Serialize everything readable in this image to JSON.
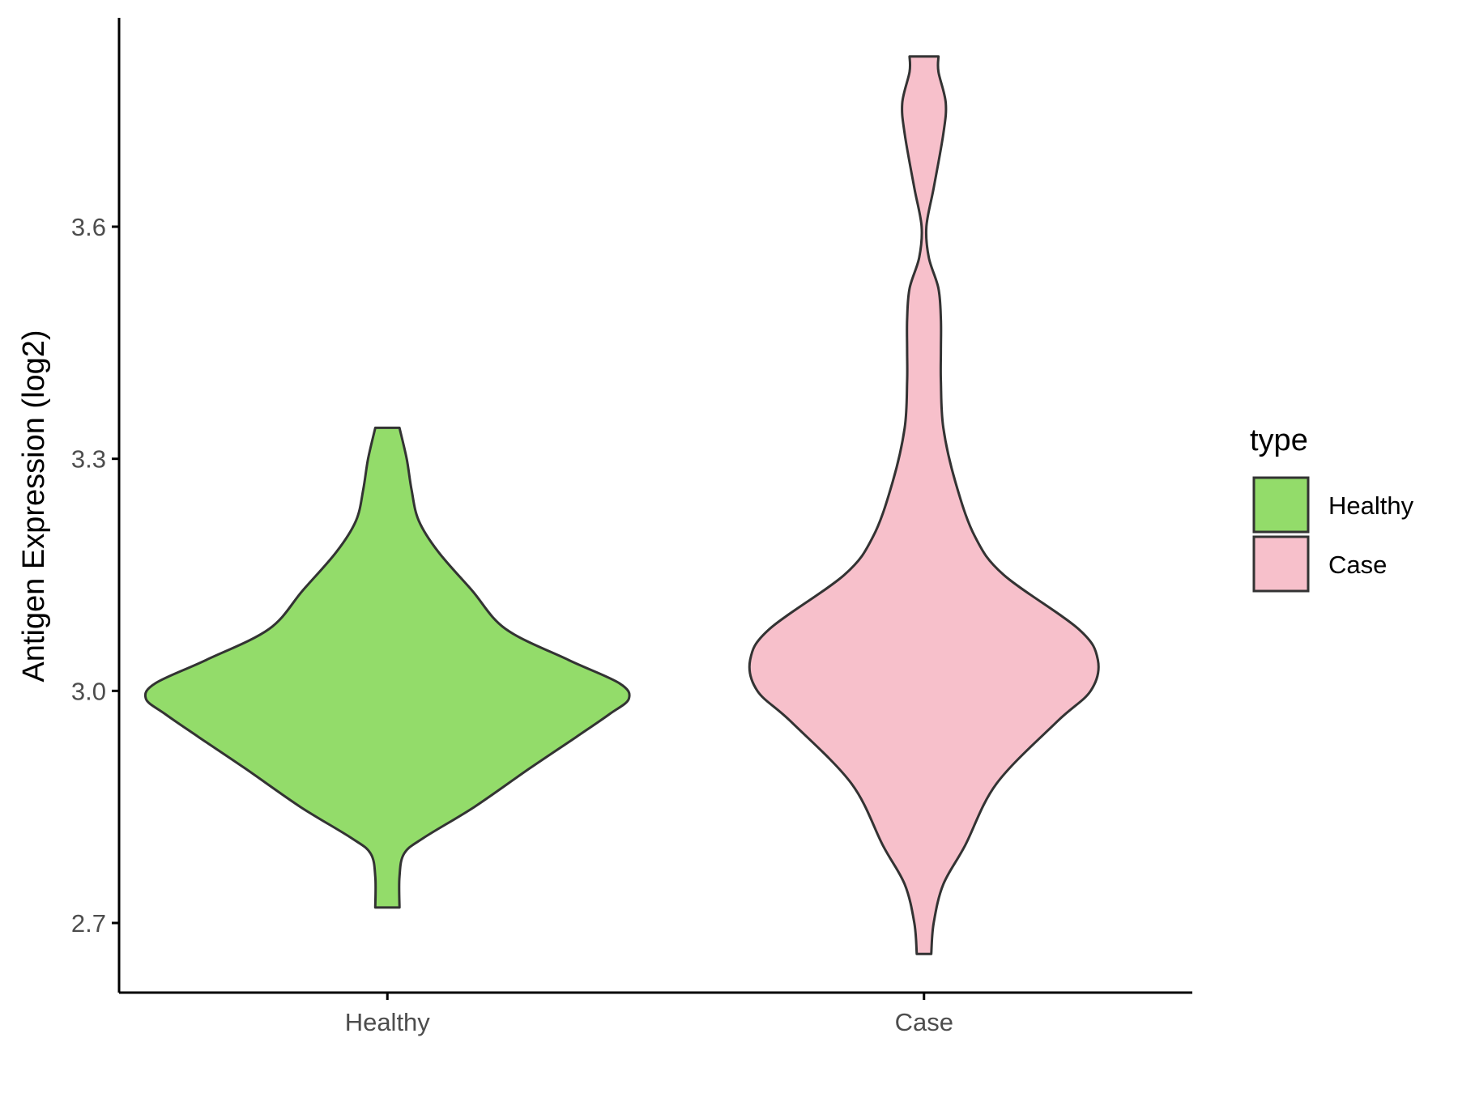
{
  "chart_data": {
    "type": "violin",
    "ylabel": "Antigen Expression (log2)",
    "xlabel": "",
    "categories": [
      "Healthy",
      "Case"
    ],
    "ylim": [
      2.61,
      3.87
    ],
    "yticks": [
      2.7,
      3.0,
      3.3,
      3.6
    ],
    "ytick_labels": [
      "2.7",
      "3.0",
      "3.3",
      "3.6"
    ],
    "grid": false,
    "legend": {
      "title": "type",
      "position": "right",
      "entries": [
        "Healthy",
        "Case"
      ]
    },
    "series": [
      {
        "name": "Healthy",
        "color": "#93DC6A",
        "min": 2.72,
        "max": 3.34,
        "density": [
          [
            2.72,
            0.05
          ],
          [
            2.76,
            0.05
          ],
          [
            2.79,
            0.07
          ],
          [
            2.81,
            0.15
          ],
          [
            2.85,
            0.36
          ],
          [
            2.9,
            0.59
          ],
          [
            2.94,
            0.78
          ],
          [
            2.97,
            0.92
          ],
          [
            2.99,
            1.0
          ],
          [
            3.01,
            0.96
          ],
          [
            3.04,
            0.75
          ],
          [
            3.08,
            0.49
          ],
          [
            3.13,
            0.35
          ],
          [
            3.18,
            0.21
          ],
          [
            3.22,
            0.13
          ],
          [
            3.26,
            0.1
          ],
          [
            3.3,
            0.08
          ],
          [
            3.34,
            0.05
          ]
        ]
      },
      {
        "name": "Case",
        "color": "#F7C0CB",
        "min": 2.66,
        "max": 3.82,
        "density": [
          [
            2.66,
            0.03
          ],
          [
            2.7,
            0.04
          ],
          [
            2.75,
            0.08
          ],
          [
            2.8,
            0.17
          ],
          [
            2.88,
            0.3
          ],
          [
            2.96,
            0.55
          ],
          [
            3.0,
            0.69
          ],
          [
            3.04,
            0.72
          ],
          [
            3.08,
            0.64
          ],
          [
            3.15,
            0.33
          ],
          [
            3.2,
            0.21
          ],
          [
            3.27,
            0.13
          ],
          [
            3.34,
            0.08
          ],
          [
            3.4,
            0.07
          ],
          [
            3.44,
            0.07
          ],
          [
            3.48,
            0.07
          ],
          [
            3.52,
            0.06
          ],
          [
            3.56,
            0.02
          ],
          [
            3.6,
            0.01
          ],
          [
            3.65,
            0.04
          ],
          [
            3.72,
            0.08
          ],
          [
            3.76,
            0.09
          ],
          [
            3.8,
            0.06
          ],
          [
            3.82,
            0.06
          ]
        ]
      }
    ]
  }
}
